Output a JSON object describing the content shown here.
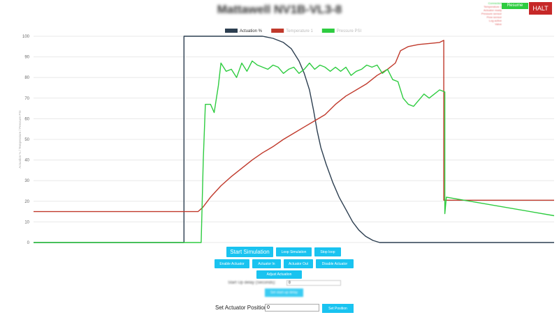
{
  "header": {
    "title": "Mattawell NV1B-VL3-8",
    "status_lines": [
      "Connected",
      "Temperature 1",
      "Actuator ready",
      "Pressure sensor",
      "Flow sensor",
      "Log active",
      "Valve"
    ],
    "resume_label": "Resume",
    "halt_label": "HALT"
  },
  "colors": {
    "actuation": "#2c3e50",
    "temperature": "#c0392b",
    "pressure": "#2ecc40",
    "button": "#19c3f0",
    "halt": "#c62828"
  },
  "chart_data": {
    "type": "line",
    "ylim": [
      0,
      100
    ],
    "yticks": [
      0,
      10,
      20,
      30,
      40,
      50,
      60,
      70,
      80,
      90,
      100
    ],
    "xlim": [
      0,
      100
    ],
    "ylabel": "Actuation % / Temperature / Pressure PSI",
    "grid": true,
    "legend_position": "top",
    "series": [
      {
        "name": "Actuation %",
        "color": "#2c3e50",
        "points": [
          [
            0,
            0
          ],
          [
            28.9,
            0
          ],
          [
            28.9,
            100
          ],
          [
            44,
            100
          ],
          [
            46,
            99
          ],
          [
            48,
            97
          ],
          [
            49.5,
            94
          ],
          [
            51,
            88
          ],
          [
            52,
            82
          ],
          [
            53,
            74
          ],
          [
            53.8,
            64
          ],
          [
            54.5,
            54
          ],
          [
            55.2,
            46
          ],
          [
            56.2,
            38
          ],
          [
            57.5,
            29
          ],
          [
            58.7,
            22
          ],
          [
            60,
            16
          ],
          [
            61.3,
            10
          ],
          [
            62.5,
            6
          ],
          [
            63.8,
            3
          ],
          [
            65.2,
            1
          ],
          [
            66.5,
            0
          ],
          [
            100,
            0
          ]
        ]
      },
      {
        "name": "Temperature 1",
        "color": "#c0392b",
        "points": [
          [
            0,
            15
          ],
          [
            31.6,
            15
          ],
          [
            32.5,
            17
          ],
          [
            34,
            22
          ],
          [
            36,
            27.5
          ],
          [
            38,
            32
          ],
          [
            40,
            36
          ],
          [
            42,
            40
          ],
          [
            44,
            43.5
          ],
          [
            46,
            46.5
          ],
          [
            48,
            50
          ],
          [
            50,
            53
          ],
          [
            52,
            56
          ],
          [
            54,
            59
          ],
          [
            56,
            62
          ],
          [
            58,
            67
          ],
          [
            60,
            71
          ],
          [
            62,
            74
          ],
          [
            64,
            77
          ],
          [
            66,
            81
          ],
          [
            68,
            84
          ],
          [
            69.5,
            87
          ],
          [
            70.5,
            93
          ],
          [
            72,
            95
          ],
          [
            74,
            96
          ],
          [
            76,
            96.5
          ],
          [
            78,
            97
          ],
          [
            78.8,
            98
          ],
          [
            78.8,
            20.5
          ],
          [
            100,
            20.5
          ]
        ]
      },
      {
        "name": "Pressure PSI",
        "color": "#2ecc40",
        "points": [
          [
            0,
            0
          ],
          [
            32.2,
            0
          ],
          [
            32.6,
            40
          ],
          [
            33,
            67
          ],
          [
            34,
            67
          ],
          [
            34.7,
            63
          ],
          [
            35.5,
            76
          ],
          [
            36,
            87
          ],
          [
            37,
            83
          ],
          [
            38,
            84
          ],
          [
            39,
            80
          ],
          [
            40,
            87
          ],
          [
            41,
            83
          ],
          [
            42,
            88
          ],
          [
            43,
            86
          ],
          [
            44,
            85
          ],
          [
            45,
            84
          ],
          [
            46,
            86
          ],
          [
            47,
            85
          ],
          [
            48,
            82
          ],
          [
            49,
            84
          ],
          [
            50,
            85
          ],
          [
            51,
            82
          ],
          [
            52,
            84
          ],
          [
            53,
            87
          ],
          [
            54,
            84
          ],
          [
            55,
            86
          ],
          [
            56,
            85
          ],
          [
            57,
            83
          ],
          [
            58,
            85
          ],
          [
            59,
            83
          ],
          [
            60,
            85
          ],
          [
            61,
            81
          ],
          [
            62,
            83
          ],
          [
            63,
            84
          ],
          [
            64,
            86
          ],
          [
            65,
            85
          ],
          [
            66,
            86
          ],
          [
            67,
            82
          ],
          [
            68,
            84
          ],
          [
            69,
            79
          ],
          [
            70,
            78
          ],
          [
            71,
            70
          ],
          [
            72,
            67
          ],
          [
            73,
            66
          ],
          [
            74,
            69
          ],
          [
            75,
            72
          ],
          [
            76,
            70
          ],
          [
            77,
            72
          ],
          [
            78,
            74
          ],
          [
            79,
            73
          ],
          [
            79,
            14
          ],
          [
            79.3,
            22
          ],
          [
            100,
            13
          ]
        ]
      }
    ]
  },
  "controls": {
    "start_simulation": "Start Simulation",
    "loop_simulation": "Loop Simulation",
    "stop_loop": "Stop loop",
    "enable_actuator": "Enable Actuator",
    "actuator_in": "Actuator In",
    "actuator_out": "Actuator Out",
    "disable_actuator": "Disable Actuator",
    "adjust_actuation": "Adjust Actuation",
    "startup_delay_label": "Start Up delay (Seconds):",
    "startup_delay_value": "0",
    "set_delay": "Set start-up delay",
    "set_actuator_position_label": "Set Actuator Position:",
    "actuator_position_value": "0",
    "set_position": "Set Position"
  }
}
